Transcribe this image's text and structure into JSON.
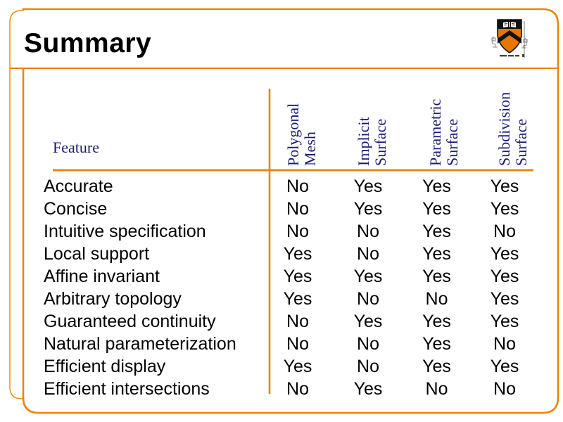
{
  "slide": {
    "title": "Summary",
    "accent_color": "#E8860D",
    "header_text_color": "#1b1b75",
    "body_text_color": "#000000"
  },
  "logo": {
    "name": "princeton-shield",
    "shield_orange": "#E77500",
    "shield_black": "#111111"
  },
  "table": {
    "feature_header": "Feature",
    "columns": [
      {
        "line1": "Polygonal",
        "line2": "Mesh"
      },
      {
        "line1": "Implicit",
        "line2": "Surface"
      },
      {
        "line1": "Parametric",
        "line2": "Surface"
      },
      {
        "line1": "Subdivision",
        "line2": "Surface"
      }
    ],
    "rows": [
      {
        "feature": "Accurate",
        "values": [
          "No",
          "Yes",
          "Yes",
          "Yes"
        ]
      },
      {
        "feature": "Concise",
        "values": [
          "No",
          "Yes",
          "Yes",
          "Yes"
        ]
      },
      {
        "feature": "Intuitive specification",
        "values": [
          "No",
          "No",
          "Yes",
          "No"
        ]
      },
      {
        "feature": "Local support",
        "values": [
          "Yes",
          "No",
          "Yes",
          "Yes"
        ]
      },
      {
        "feature": "Affine invariant",
        "values": [
          "Yes",
          "Yes",
          "Yes",
          "Yes"
        ]
      },
      {
        "feature": "Arbitrary topology",
        "values": [
          "Yes",
          "No",
          "No",
          "Yes"
        ]
      },
      {
        "feature": "Guaranteed continuity",
        "values": [
          "No",
          "Yes",
          "Yes",
          "Yes"
        ]
      },
      {
        "feature": "Natural parameterization",
        "values": [
          "No",
          "No",
          "Yes",
          "No"
        ]
      },
      {
        "feature": "Efficient display",
        "values": [
          "Yes",
          "No",
          "Yes",
          "Yes"
        ]
      },
      {
        "feature": "Efficient intersections",
        "values": [
          "No",
          "Yes",
          "No",
          "No"
        ]
      }
    ]
  }
}
